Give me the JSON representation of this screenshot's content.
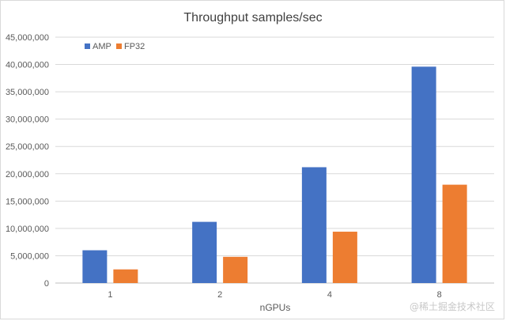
{
  "chart_data": {
    "type": "bar",
    "title": "Throughput samples/sec",
    "xlabel": "nGPUs",
    "ylabel": "",
    "categories": [
      "1",
      "2",
      "4",
      "8"
    ],
    "series": [
      {
        "name": "AMP",
        "color": "#4472c4",
        "values": [
          6000000,
          11200000,
          21200000,
          39600000
        ]
      },
      {
        "name": "FP32",
        "color": "#ed7d31",
        "values": [
          2500000,
          4800000,
          9400000,
          18000000
        ]
      }
    ],
    "ylim": [
      0,
      45000000
    ],
    "yticks": [
      0,
      5000000,
      10000000,
      15000000,
      20000000,
      25000000,
      30000000,
      35000000,
      40000000,
      45000000
    ],
    "ytick_labels": [
      "0",
      "5,000,000",
      "10,000,000",
      "15,000,000",
      "20,000,000",
      "25,000,000",
      "30,000,000",
      "35,000,000",
      "40,000,000",
      "45,000,000"
    ],
    "grid": true,
    "legend": "top-left"
  },
  "watermark": "@稀土掘金技术社区"
}
